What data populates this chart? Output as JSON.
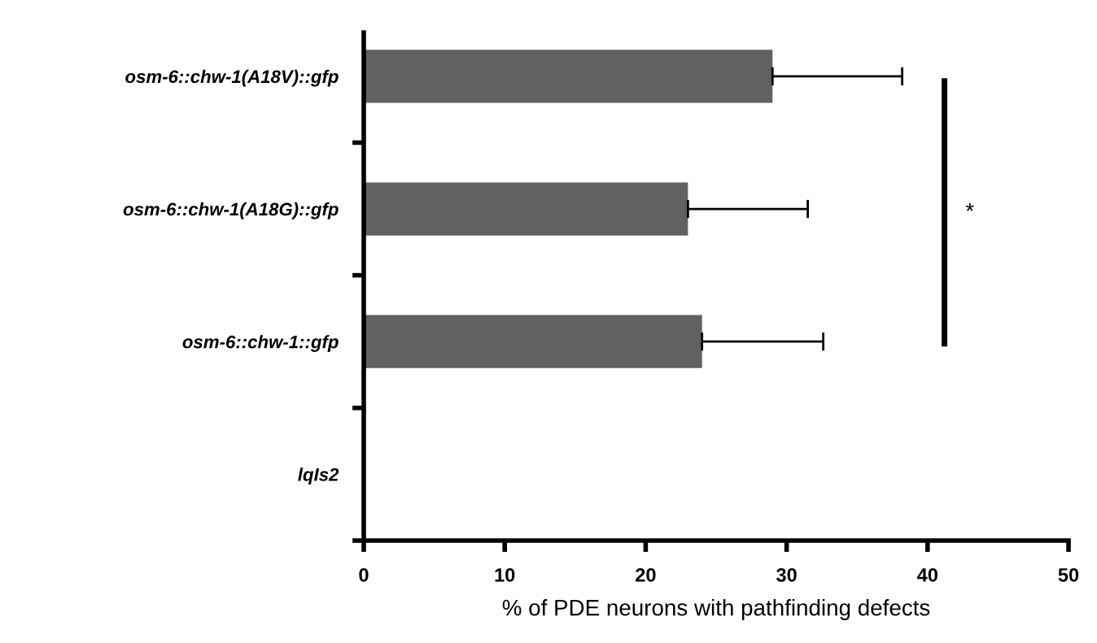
{
  "chart_data": {
    "type": "bar",
    "orientation": "horizontal",
    "categories": [
      "osm-6::chw-1(A18V)::gfp",
      "osm-6::chw-1(A18G)::gfp",
      "osm-6::chw-1::gfp",
      "lqIs2"
    ],
    "values": [
      29,
      23,
      24,
      0
    ],
    "color": "#616161",
    "errors": [
      [
        29,
        38.2
      ],
      [
        23,
        31.5
      ],
      [
        24,
        32.6
      ],
      null
    ],
    "xlabel": "% of PDE neurons with pathfinding defects",
    "xlim": [
      0,
      50
    ],
    "xticks": [
      0,
      10,
      20,
      30,
      40,
      50
    ],
    "grid": false,
    "legend": false,
    "annotations": [
      "*"
    ]
  }
}
